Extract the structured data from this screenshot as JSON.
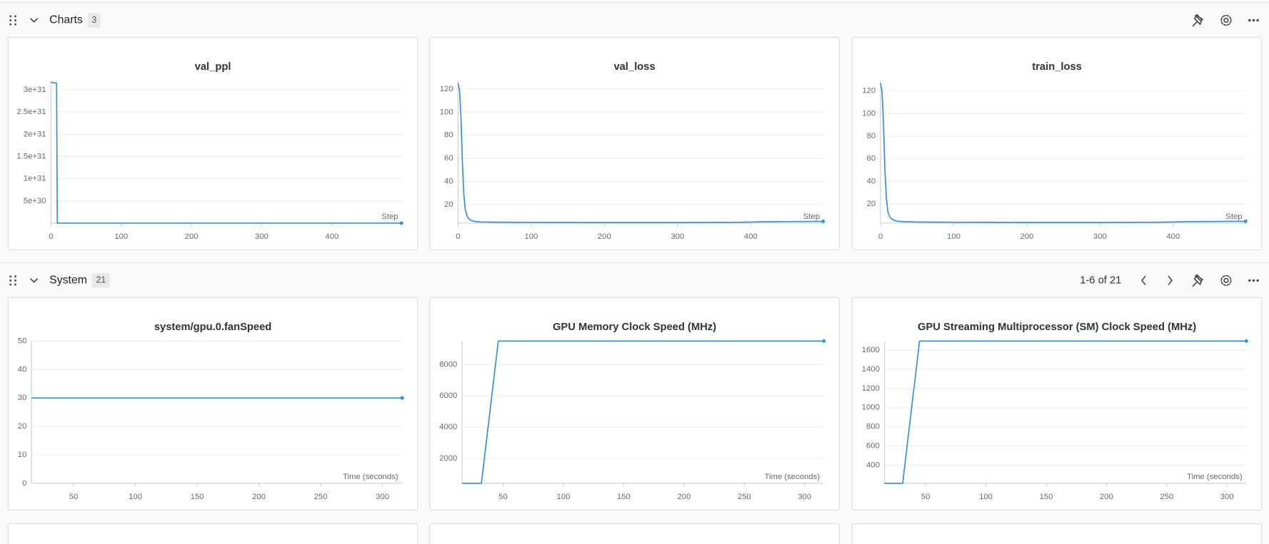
{
  "sections": [
    {
      "title": "Charts",
      "count": 3
    },
    {
      "title": "System",
      "count": 21,
      "pagination": "1-6 of 21"
    }
  ],
  "chart_data": [
    {
      "type": "line",
      "title": "val_ppl",
      "xlabel": "Step",
      "color": "#3d8fd8",
      "x": [
        0,
        2,
        4,
        6,
        8,
        9,
        50,
        100,
        200,
        300,
        400,
        499
      ],
      "values": [
        3.16e+31,
        3.17e+31,
        3.15e+31,
        3.16e+31,
        3.15e+31,
        12,
        8,
        7,
        6.5,
        6.3,
        6.6,
        6.8
      ],
      "xlim": [
        0,
        500
      ],
      "ylim": [
        0,
        3.2e+31
      ],
      "xticks": [
        0,
        100,
        200,
        300,
        400
      ],
      "yticks": [
        {
          "value": 5e+30,
          "label": "5e+30"
        },
        {
          "value": 1e+31,
          "label": "1e+31"
        },
        {
          "value": 1.5e+31,
          "label": "1.5e+31"
        },
        {
          "value": 2e+31,
          "label": "2e+31"
        },
        {
          "value": 2.5e+31,
          "label": "2.5e+31"
        },
        {
          "value": 3e+31,
          "label": "3e+31"
        }
      ]
    },
    {
      "type": "line",
      "title": "val_loss",
      "xlabel": "Step",
      "color": "#3d8fd8",
      "x": [
        0,
        2,
        4,
        6,
        8,
        10,
        13,
        17,
        22,
        30,
        50,
        100,
        200,
        300,
        380,
        420,
        499
      ],
      "values": [
        125,
        119,
        95,
        55,
        28,
        15,
        9,
        6.5,
        5.5,
        5,
        4.8,
        4.6,
        4.5,
        4.5,
        4.7,
        5.2,
        5.5
      ],
      "xlim": [
        0,
        500
      ],
      "ylim": [
        4,
        127
      ],
      "xticks": [
        0,
        100,
        200,
        300,
        400
      ],
      "yticks": [
        20,
        40,
        60,
        80,
        100,
        120
      ]
    },
    {
      "type": "line",
      "title": "train_loss",
      "xlabel": "Step",
      "color": "#3d8fd8",
      "x": [
        0,
        2,
        4,
        6,
        8,
        10,
        13,
        17,
        22,
        30,
        50,
        100,
        200,
        300,
        380,
        420,
        499
      ],
      "values": [
        127,
        120,
        92,
        50,
        25,
        13,
        8,
        6,
        4.8,
        4.3,
        4,
        3.8,
        3.6,
        3.6,
        3.8,
        4.3,
        4.6
      ],
      "xlim": [
        0,
        500
      ],
      "ylim": [
        3,
        129
      ],
      "xticks": [
        0,
        100,
        200,
        300,
        400
      ],
      "yticks": [
        20,
        40,
        60,
        80,
        100,
        120
      ]
    },
    {
      "type": "line",
      "title": "system/gpu.0.fanSpeed",
      "xlabel": "Time (seconds)",
      "color": "#3d8fd8",
      "x": [
        16,
        46,
        76,
        106,
        136,
        166,
        196,
        226,
        256,
        286,
        316
      ],
      "values": [
        30,
        30,
        30,
        30,
        30,
        30,
        30,
        30,
        30,
        30,
        30
      ],
      "xlim": [
        16,
        316
      ],
      "ylim": [
        0,
        50
      ],
      "xticks": [
        50,
        100,
        150,
        200,
        250,
        300
      ],
      "yticks": [
        0,
        10,
        20,
        30,
        40,
        50
      ]
    },
    {
      "type": "line",
      "title": "GPU Memory Clock Speed (MHz)",
      "xlabel": "Time (seconds)",
      "color": "#3d8fd8",
      "x": [
        16,
        32,
        46,
        316
      ],
      "values": [
        405,
        405,
        9501,
        9501
      ],
      "xlim": [
        16,
        316
      ],
      "ylim": [
        405,
        9501
      ],
      "xticks": [
        50,
        100,
        150,
        200,
        250,
        300
      ],
      "yticks": [
        2000,
        4000,
        6000,
        8000
      ]
    },
    {
      "type": "line",
      "title": "GPU Streaming Multiprocessor (SM) Clock Speed (MHz)",
      "xlabel": "Time (seconds)",
      "color": "#3d8fd8",
      "x": [
        16,
        31,
        45,
        316
      ],
      "values": [
        210,
        210,
        1695,
        1695
      ],
      "xlim": [
        16,
        316
      ],
      "ylim": [
        210,
        1695
      ],
      "xticks": [
        50,
        100,
        150,
        200,
        250,
        300
      ],
      "yticks": [
        400,
        600,
        800,
        1000,
        1200,
        1400,
        1600
      ]
    }
  ]
}
